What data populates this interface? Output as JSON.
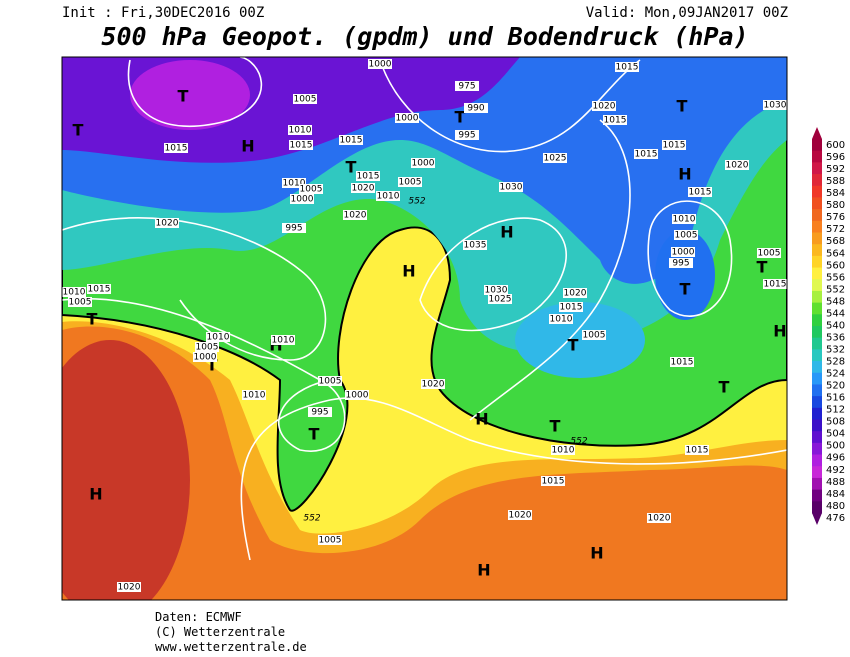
{
  "header": {
    "init": "Init : Fri,30DEC2016 00Z",
    "valid": "Valid: Mon,09JAN2017 00Z",
    "title": "500 hPa Geopot. (gpdm) und Bodendruck (hPa)"
  },
  "map": {
    "pressure_centers": [
      "T",
      "T",
      "H",
      "T",
      "H",
      "T",
      "T",
      "H",
      "H",
      "T",
      "T",
      "H",
      "T",
      "T",
      "H",
      "T",
      "T",
      "T",
      "H",
      "T",
      "H",
      "H",
      "H"
    ],
    "isobar_labels": [
      1000,
      1015,
      975,
      990,
      995,
      1005,
      1010,
      1015,
      1015,
      1015,
      1000,
      1020,
      1015,
      1030,
      1000,
      1015,
      1005,
      1020,
      1010,
      1025,
      1015,
      1015,
      1020,
      1010,
      1005,
      1000,
      1015,
      1030,
      1020,
      1020,
      995,
      1010,
      1005,
      1000,
      995,
      1035,
      1005,
      1015,
      1010,
      1015,
      1005,
      1030,
      1025,
      1020,
      1015,
      1010,
      1005,
      1010,
      1005,
      1000,
      1010,
      1015,
      1005,
      1000,
      1020,
      1010,
      995,
      1010,
      1015,
      1015,
      1020,
      1020,
      1005,
      1020
    ],
    "isohypse_labels": [
      552,
      552,
      552
    ]
  },
  "colorbar": {
    "labels": [
      600,
      596,
      592,
      588,
      584,
      580,
      576,
      572,
      568,
      564,
      560,
      556,
      552,
      548,
      544,
      540,
      536,
      532,
      528,
      524,
      520,
      516,
      512,
      508,
      504,
      500,
      496,
      492,
      488,
      484,
      480,
      476
    ],
    "colors": [
      "#a0003c",
      "#b80840",
      "#d01848",
      "#e02838",
      "#f03828",
      "#f05020",
      "#f06820",
      "#f88020",
      "#f89c20",
      "#fbb820",
      "#ffd428",
      "#fff040",
      "#e0f850",
      "#a8f040",
      "#60e030",
      "#30d040",
      "#20c860",
      "#20c890",
      "#28c8c0",
      "#30b8e8",
      "#2898f8",
      "#2070f0",
      "#1848e0",
      "#2020d0",
      "#3c10c8",
      "#6010d0",
      "#8818d8",
      "#b020e0",
      "#c828d8",
      "#a010b0",
      "#700080",
      "#580068"
    ]
  },
  "footer": [
    "Daten: ECMWF",
    "(C) Wetterzentrale",
    "www.wetterzentrale.de"
  ]
}
